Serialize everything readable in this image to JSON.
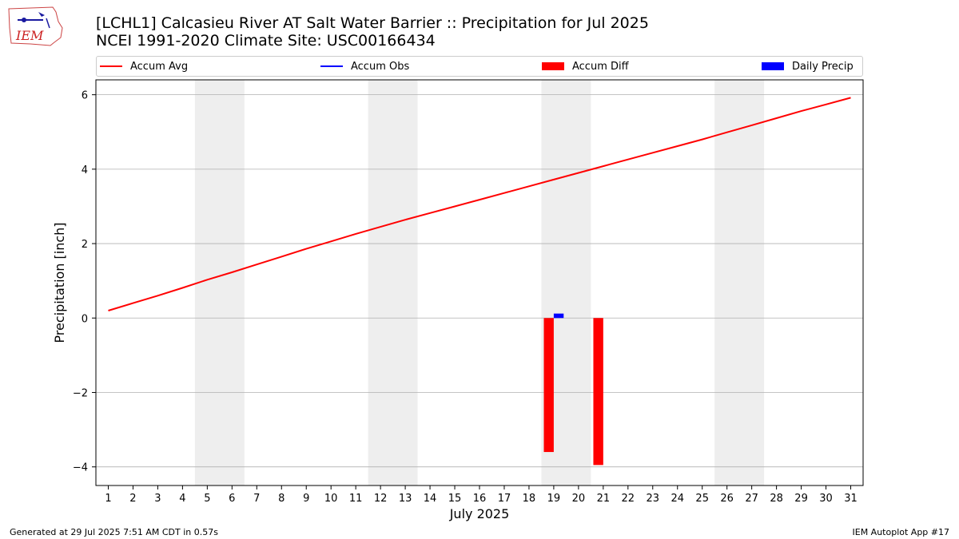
{
  "header": {
    "title_line1": "[LCHL1] Calcasieu River  AT Salt Water Barrier :: Precipitation for Jul 2025",
    "title_line2": "NCEI 1991-2020 Climate Site: USC00166434",
    "logo_text": "IEM"
  },
  "legend": {
    "accum_avg": "Accum Avg",
    "accum_obs": "Accum Obs",
    "accum_diff": "Accum Diff",
    "daily_precip": "Daily Precip"
  },
  "footer": {
    "generated": "Generated at 29 Jul 2025 7:51 AM CDT in 0.57s",
    "app": "IEM Autoplot App #17"
  },
  "colors": {
    "accum_avg": "#ff0000",
    "accum_obs": "#0000ff",
    "accum_diff": "#ff0000",
    "daily_precip": "#0000ff",
    "weekend_shade": "#eeeeee",
    "grid": "#b0b0b0"
  },
  "chart_data": {
    "type": "line",
    "xlabel": "July 2025",
    "ylabel": "Precipitation [inch]",
    "xlim": [
      0.5,
      31.5
    ],
    "ylim": [
      -4.5,
      6.4
    ],
    "x_ticks": [
      1,
      2,
      3,
      4,
      5,
      6,
      7,
      8,
      9,
      10,
      11,
      12,
      13,
      14,
      15,
      16,
      17,
      18,
      19,
      20,
      21,
      22,
      23,
      24,
      25,
      26,
      27,
      28,
      29,
      30,
      31
    ],
    "y_ticks": [
      -4,
      -2,
      0,
      2,
      4,
      6
    ],
    "y_tick_labels": [
      "−4",
      "−2",
      "0",
      "2",
      "4",
      "6"
    ],
    "grid": "horizontal",
    "legend_position": "top",
    "weekend_shaded_days": [
      [
        5,
        6
      ],
      [
        12,
        13
      ],
      [
        19,
        20
      ],
      [
        26,
        27
      ]
    ],
    "accum_avg": {
      "name": "Accum Avg",
      "x": [
        1,
        2,
        3,
        4,
        5,
        6,
        7,
        8,
        9,
        10,
        11,
        12,
        13,
        14,
        15,
        16,
        17,
        18,
        19,
        20,
        21,
        22,
        23,
        24,
        25,
        26,
        27,
        28,
        29,
        30,
        31
      ],
      "values": [
        0.2,
        0.4,
        0.6,
        0.81,
        1.03,
        1.23,
        1.44,
        1.65,
        1.86,
        2.06,
        2.26,
        2.45,
        2.64,
        2.82,
        3.0,
        3.18,
        3.36,
        3.54,
        3.72,
        3.9,
        4.08,
        4.26,
        4.44,
        4.62,
        4.8,
        4.99,
        5.18,
        5.37,
        5.56,
        5.74,
        5.92
      ]
    },
    "accum_diff": {
      "name": "Accum Diff",
      "x": [
        19,
        21
      ],
      "values": [
        -3.6,
        -3.95
      ]
    },
    "daily_precip": {
      "name": "Daily Precip",
      "x": [
        19
      ],
      "values": [
        0.12
      ]
    }
  }
}
